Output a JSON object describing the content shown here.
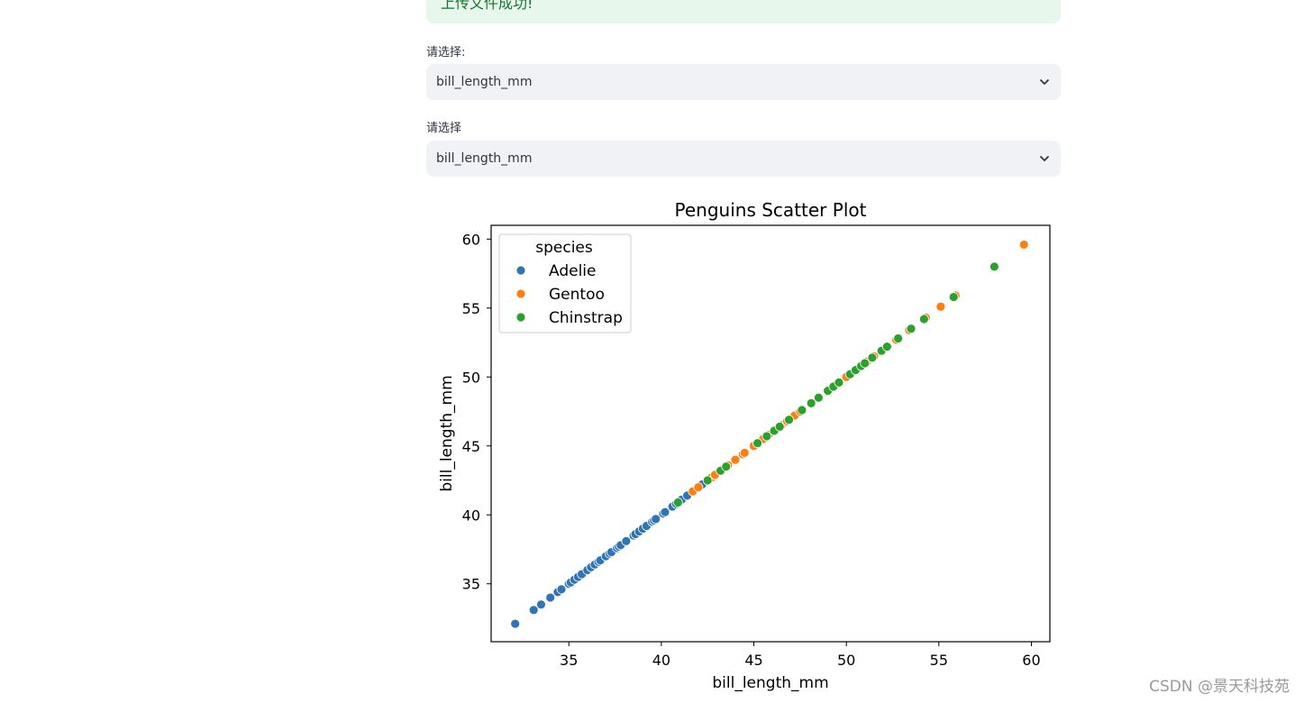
{
  "alert": {
    "text": "上传文件成功!"
  },
  "selects": [
    {
      "label": "请选择:",
      "value": "bill_length_mm"
    },
    {
      "label": "请选择",
      "value": "bill_length_mm"
    }
  ],
  "icons": {
    "dropdown": "chevron-down-icon"
  },
  "colors": {
    "Adelie": "#2f74b5",
    "Gentoo": "#ff7f0e",
    "Chinstrap": "#2ca02c"
  },
  "watermark": "CSDN @景天科技苑",
  "chart_data": {
    "type": "scatter",
    "title": "Penguins Scatter Plot",
    "xlabel": "bill_length_mm",
    "ylabel": "bill_length_mm",
    "xlim": [
      30.8,
      61.0
    ],
    "ylim": [
      30.8,
      61.0
    ],
    "xticks": [
      35,
      40,
      45,
      50,
      55,
      60
    ],
    "yticks": [
      35,
      40,
      45,
      50,
      55,
      60
    ],
    "legend_title": "species",
    "legend_position": "upper-left",
    "series": [
      {
        "name": "Adelie",
        "color": "#2f74b5",
        "values": [
          32.1,
          33.1,
          33.5,
          34.0,
          34.4,
          34.6,
          35.0,
          35.1,
          35.3,
          35.5,
          35.7,
          36.0,
          36.2,
          36.4,
          36.6,
          36.7,
          37.0,
          37.2,
          37.3,
          37.6,
          37.7,
          37.8,
          38.1,
          38.5,
          38.6,
          38.8,
          39.0,
          39.2,
          39.5,
          39.6,
          39.7,
          40.1,
          40.2,
          40.6,
          40.8,
          41.1,
          41.4,
          42.0,
          42.2
        ]
      },
      {
        "name": "Gentoo",
        "color": "#ff7f0e",
        "values": [
          41.7,
          42.0,
          42.7,
          42.9,
          43.3,
          43.6,
          44.0,
          44.4,
          44.5,
          45.0,
          45.2,
          45.5,
          45.8,
          46.2,
          46.5,
          46.8,
          47.2,
          47.5,
          48.1,
          48.5,
          49.0,
          49.5,
          50.0,
          50.5,
          51.1,
          51.5,
          52.2,
          52.7,
          53.4,
          54.3,
          55.1,
          55.9,
          59.6
        ]
      },
      {
        "name": "Chinstrap",
        "color": "#2ca02c",
        "values": [
          40.9,
          42.5,
          43.2,
          43.5,
          45.2,
          45.7,
          46.1,
          46.4,
          46.9,
          47.6,
          48.1,
          48.5,
          49.0,
          49.3,
          49.6,
          50.2,
          50.5,
          50.8,
          51.0,
          51.4,
          51.9,
          52.2,
          52.8,
          53.5,
          54.2,
          55.8,
          58.0
        ]
      }
    ]
  }
}
